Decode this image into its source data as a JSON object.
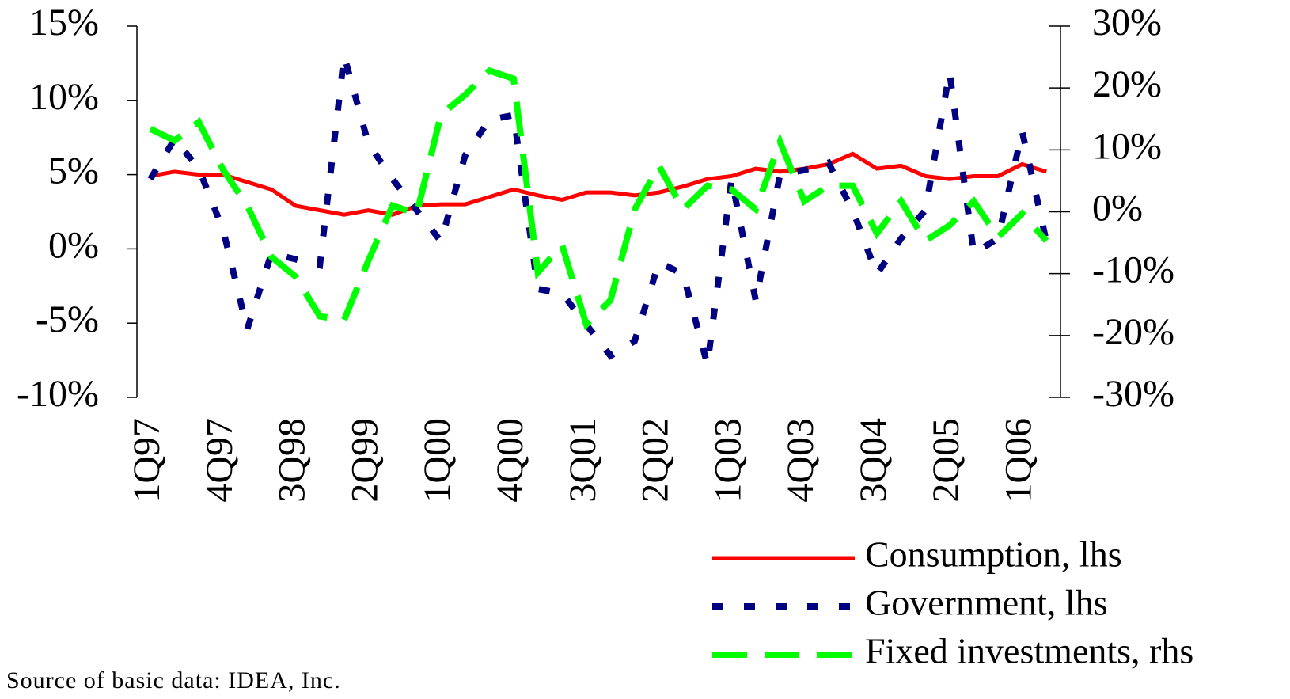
{
  "chart_data": {
    "type": "line",
    "categories": [
      "1Q97",
      null,
      null,
      "4Q97",
      null,
      null,
      "3Q98",
      null,
      null,
      "2Q99",
      null,
      null,
      "1Q00",
      null,
      null,
      "4Q00",
      null,
      null,
      "3Q01",
      null,
      null,
      "2Q02",
      null,
      null,
      "1Q03",
      null,
      null,
      "4Q03",
      null,
      null,
      "3Q04",
      null,
      null,
      "2Q05",
      null,
      null,
      "1Q06",
      null
    ],
    "series": [
      {
        "name": "Consumption, lhs",
        "color": "#ff0000",
        "values": [
          4.9,
          5.2,
          5.0,
          5.0,
          4.5,
          4.0,
          2.9,
          2.6,
          2.3,
          2.6,
          2.3,
          2.9,
          3.0,
          3.0,
          3.5,
          4.0,
          3.6,
          3.3,
          3.8,
          3.8,
          3.6,
          3.8,
          4.2,
          4.7,
          4.9,
          5.4,
          5.2,
          5.4,
          5.7,
          6.4,
          5.4,
          5.6,
          4.9,
          4.7,
          4.9,
          4.9,
          5.7,
          5.2
        ]
      },
      {
        "name": "Government, lhs",
        "color": "#000080",
        "values": [
          4.7,
          7.4,
          5.4,
          1.3,
          -5.4,
          -0.3,
          -0.7,
          -1.1,
          13.0,
          7.1,
          4.7,
          2.6,
          0.5,
          6.3,
          8.7,
          9.0,
          -2.7,
          -3.0,
          -5.1,
          -7.2,
          -6.2,
          -0.9,
          -1.7,
          -7.8,
          4.7,
          -3.5,
          5.0,
          5.3,
          5.8,
          2.6,
          -1.7,
          0.7,
          2.6,
          11.9,
          -0.3,
          0.7,
          7.9,
          0.5
        ]
      },
      {
        "name": "Fixed investments, rhs",
        "color": "#00ff00",
        "axis": "y2",
        "values": [
          13.4,
          11.5,
          14.5,
          6.8,
          1.0,
          -7.3,
          -10.5,
          -16.9,
          -17.5,
          -7.9,
          1.0,
          -0.3,
          15.7,
          18.9,
          22.8,
          21.5,
          -9.8,
          -5.4,
          -18.2,
          -14.3,
          0.4,
          7.4,
          0.4,
          4.2,
          3.6,
          0.4,
          11.3,
          1.7,
          4.2,
          4.2,
          -3.5,
          1.7,
          -4.7,
          -2.2,
          1.7,
          -4.1,
          -0.3,
          -4.7
        ]
      }
    ],
    "ylim": [
      -10,
      15
    ],
    "yticks": [
      {
        "value": -10,
        "label": "-10%"
      },
      {
        "value": -5,
        "label": "-5%"
      },
      {
        "value": 0,
        "label": "0%"
      },
      {
        "value": 5,
        "label": "5%"
      },
      {
        "value": 10,
        "label": "10%"
      },
      {
        "value": 15,
        "label": "15%"
      }
    ],
    "y2lim": [
      -30,
      30
    ],
    "y2ticks": [
      {
        "value": -30,
        "label": "-30%"
      },
      {
        "value": -20,
        "label": "-20%"
      },
      {
        "value": -10,
        "label": "-10%"
      },
      {
        "value": 0,
        "label": "0%"
      },
      {
        "value": 10,
        "label": "10%"
      },
      {
        "value": 20,
        "label": "20%"
      },
      {
        "value": 30,
        "label": "30%"
      }
    ],
    "annotations": [
      "Source of basic data: IDEA, Inc."
    ]
  }
}
